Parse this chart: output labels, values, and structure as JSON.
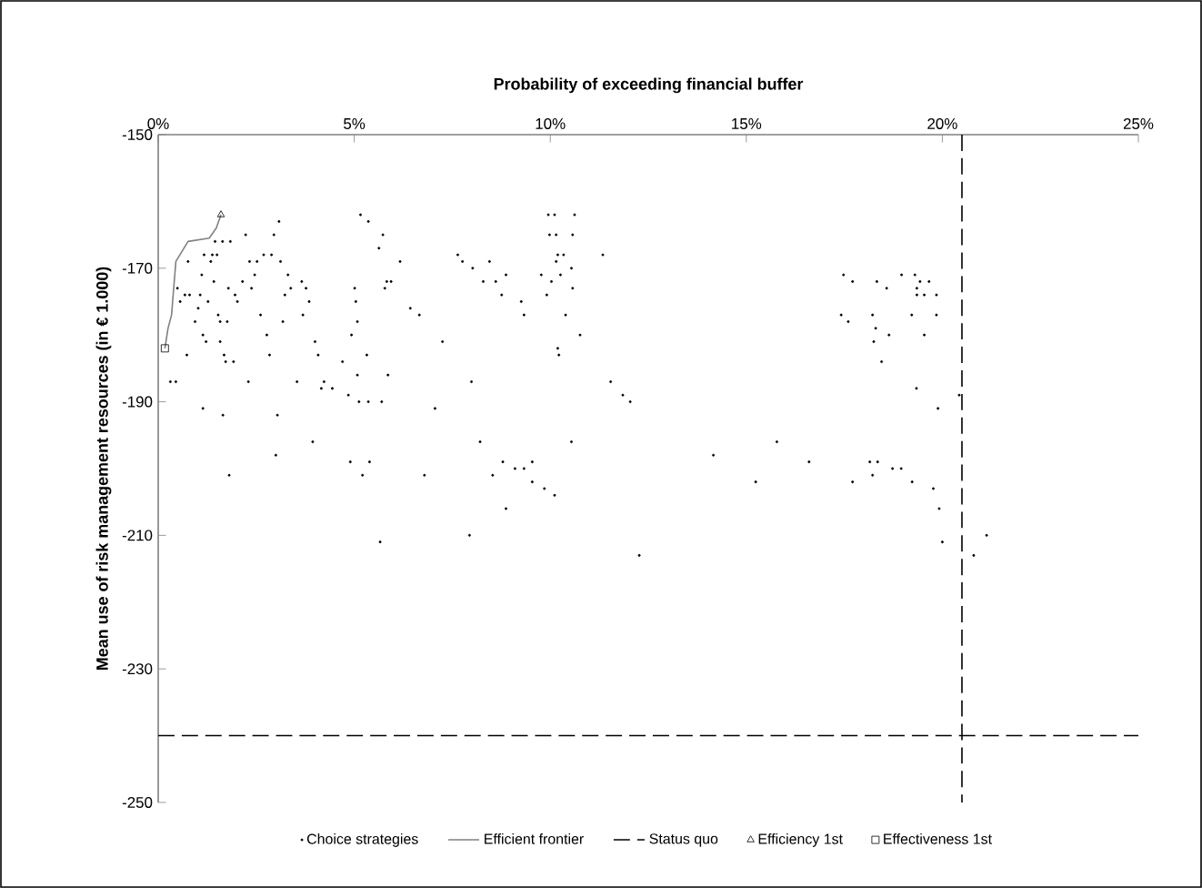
{
  "chart_data": {
    "type": "scatter",
    "xlabel": "Probability of exceeding financial buffer",
    "ylabel": "Mean use of risk management resources (in € 1.000)",
    "xlim": [
      0,
      25
    ],
    "ylim": [
      -250,
      -150
    ],
    "xticks": [
      {
        "value": 0,
        "label": "0%"
      },
      {
        "value": 5,
        "label": "5%"
      },
      {
        "value": 10,
        "label": "10%"
      },
      {
        "value": 15,
        "label": "15%"
      },
      {
        "value": 20,
        "label": "20%"
      },
      {
        "value": 25,
        "label": "25%"
      }
    ],
    "yticks": [
      -150,
      -170,
      -190,
      -210,
      -230,
      -250
    ],
    "grid": false,
    "legend": "bottom",
    "series": [
      {
        "name": "Choice strategies",
        "marker": "circle",
        "color": "#000000",
        "x": [
          0.31,
          0.45,
          0.49,
          0.56,
          0.68,
          0.8,
          0.76,
          0.73,
          0.94,
          1.02,
          1.07,
          1.11,
          1.14,
          1.14,
          1.17,
          1.22,
          1.27,
          1.34,
          1.38,
          1.42,
          1.45,
          1.5,
          1.53,
          1.58,
          1.58,
          1.64,
          1.65,
          1.68,
          1.72,
          1.76,
          1.79,
          1.81,
          1.84,
          1.92,
          1.96,
          2.02,
          2.15,
          2.23,
          2.3,
          2.33,
          2.38,
          2.46,
          2.52,
          2.61,
          2.69,
          2.77,
          2.84,
          2.89,
          2.95,
          3.0,
          3.04,
          3.08,
          3.12,
          3.18,
          3.23,
          3.31,
          3.38,
          3.54,
          3.66,
          3.69,
          3.77,
          3.85,
          3.94,
          4.0,
          4.08,
          4.16,
          4.23,
          4.44,
          4.7,
          4.85,
          4.9,
          4.93,
          5.01,
          5.04,
          5.08,
          5.08,
          5.12,
          5.16,
          5.21,
          5.32,
          5.36,
          5.36,
          5.39,
          5.63,
          5.66,
          5.7,
          5.73,
          5.78,
          5.83,
          5.86,
          5.94,
          6.17,
          6.43,
          6.66,
          6.79,
          7.06,
          7.25,
          7.64,
          7.76,
          7.94,
          7.99,
          8.02,
          8.29,
          8.45,
          8.61,
          8.76,
          8.87,
          9.26,
          9.33,
          9.77,
          9.91,
          9.95,
          9.98,
          10.03,
          10.11,
          10.15,
          10.15,
          10.19,
          10.26,
          10.34,
          10.39,
          10.54,
          10.57,
          10.57,
          10.62,
          10.76,
          10.19,
          10.22,
          11.34,
          11.54,
          11.85,
          12.04,
          8.21,
          10.54,
          8.79,
          9.1,
          9.33,
          9.54,
          9.54,
          8.53,
          9.85,
          10.11,
          8.87,
          12.27,
          14.16,
          15.78,
          15.24,
          16.6,
          17.48,
          17.71,
          18.33,
          18.58,
          18.96,
          19.3,
          19.43,
          19.66,
          19.35,
          19.35,
          19.54,
          19.85,
          17.42,
          17.6,
          18.22,
          19.22,
          19.85,
          18.3,
          18.64,
          19.54,
          18.25,
          18.45,
          19.34,
          20.43,
          19.89,
          18.15,
          18.35,
          18.73,
          18.95,
          17.71,
          18.22,
          19.23,
          19.77,
          19.92,
          20.0,
          21.13,
          20.8
        ],
        "values": [
          -187,
          -187,
          -173,
          -175,
          -174,
          -174,
          -169,
          -183,
          -178,
          -176,
          -174,
          -171,
          -180,
          -191,
          -168,
          -181,
          -175,
          -169,
          -168,
          -172,
          -166,
          -168,
          -177,
          -178,
          -181,
          -166,
          -192,
          -183,
          -184,
          -178,
          -173,
          -201,
          -166,
          -184,
          -174,
          -175,
          -172,
          -165,
          -187,
          -169,
          -173,
          -171,
          -169,
          -177,
          -168,
          -180,
          -183,
          -168,
          -165,
          -198,
          -192,
          -163,
          -169,
          -178,
          -174,
          -171,
          -173,
          -187,
          -172,
          -177,
          -173,
          -175,
          -196,
          -181,
          -183,
          -188,
          -187,
          -188,
          -184,
          -189,
          -199,
          -180,
          -173,
          -175,
          -178,
          -186,
          -190,
          -162,
          -201,
          -183,
          -163,
          -190,
          -199,
          -167,
          -211,
          -190,
          -165,
          -173,
          -172,
          -186,
          -172,
          -169,
          -176,
          -177,
          -201,
          -191,
          -181,
          -168,
          -169,
          -210,
          -187,
          -170,
          -172,
          -169,
          -172,
          -174,
          -171,
          -175,
          -177,
          -171,
          -174,
          -162,
          -165,
          -172,
          -162,
          -165,
          -169,
          -168,
          -171,
          -168,
          -177,
          -170,
          -165,
          -173,
          -162,
          -180,
          -182,
          -183,
          -168,
          -187,
          -189,
          -190,
          -196,
          -196,
          -199,
          -200,
          -200,
          -199,
          -202,
          -201,
          -203,
          -204,
          -206,
          -213,
          -198,
          -196,
          -202,
          -199,
          -171,
          -172,
          -172,
          -173,
          -171,
          -171,
          -172,
          -172,
          -173,
          -174,
          -174,
          -174,
          -177,
          -178,
          -177,
          -177,
          -177,
          -179,
          -180,
          -180,
          -181,
          -184,
          -188,
          -189,
          -191,
          -199,
          -199,
          -200,
          -200,
          -202,
          -201,
          -202,
          -203,
          -206,
          -211,
          -210,
          -213
        ]
      },
      {
        "name": "Efficient frontier",
        "type": "line",
        "line_style": "solid",
        "marker": "none",
        "color": "#808080",
        "x": [
          0.17,
          0.25,
          0.34,
          0.45,
          0.76,
          1.3,
          1.48,
          1.6
        ],
        "values": [
          -182,
          -179,
          -177,
          -169,
          -166,
          -165.5,
          -164,
          -162
        ]
      },
      {
        "name": "Status quo",
        "type": "line",
        "line_style": "dashed",
        "marker": "none",
        "color": "#000000",
        "x": [
          0,
          25,
          null,
          20.5,
          20.5
        ],
        "values": [
          -240,
          -240,
          null,
          -150,
          -250
        ]
      },
      {
        "name": "Efficiency 1st",
        "type": "scatter",
        "marker": "triangle",
        "color": "#000000",
        "x": [
          1.6
        ],
        "values": [
          -162
        ]
      },
      {
        "name": "Effectiveness 1st",
        "type": "scatter",
        "marker": "square",
        "color": "#000000",
        "x": [
          0.17
        ],
        "values": [
          -182
        ]
      }
    ]
  }
}
